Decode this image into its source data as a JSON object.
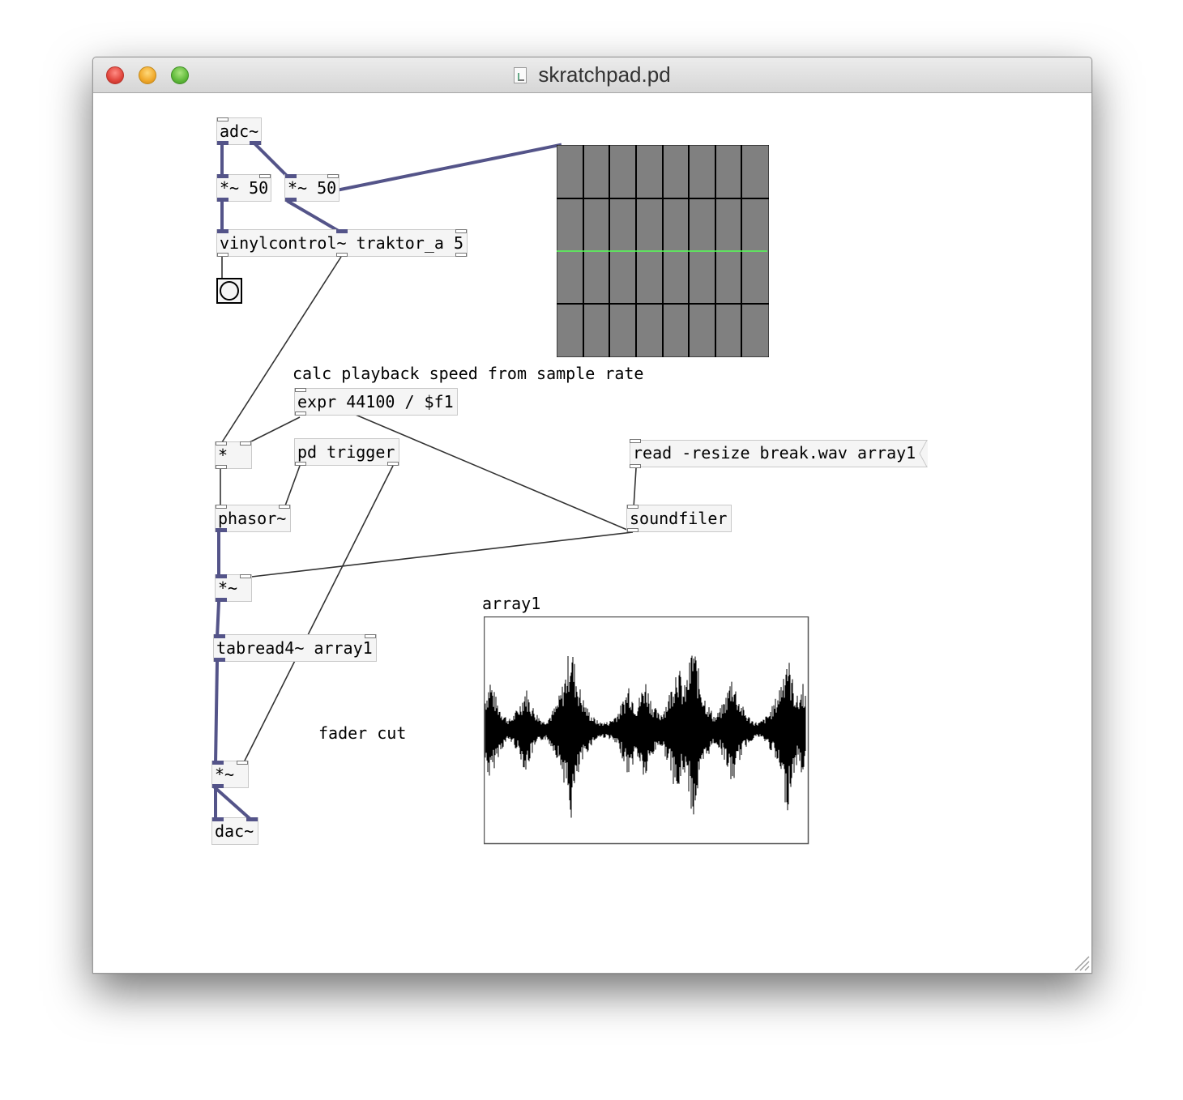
{
  "window": {
    "title": "skratchpad.pd"
  },
  "objects": {
    "adc": "adc~",
    "mul50_left": "*~ 50",
    "mul50_right": "*~ 50",
    "vinylcontrol": "vinylcontrol~ traktor_a 5",
    "expr": "expr 44100 / $f1",
    "mult": "*",
    "pd_trigger": "pd trigger",
    "phasor": "phasor~",
    "sigmul1": "*~",
    "tabread": "tabread4~ array1",
    "sigmul2": "*~",
    "dac": "dac~",
    "soundfiler": "soundfiler"
  },
  "messages": {
    "read": "read -resize break.wav array1"
  },
  "comments": {
    "calc": "calc playback speed from sample rate",
    "fader": "fader cut"
  },
  "array": {
    "name": "array1"
  },
  "colors": {
    "signal_wire": "#545489",
    "control_wire": "#333333",
    "scope_bg": "#808080",
    "scope_trace": "#55ff55"
  }
}
